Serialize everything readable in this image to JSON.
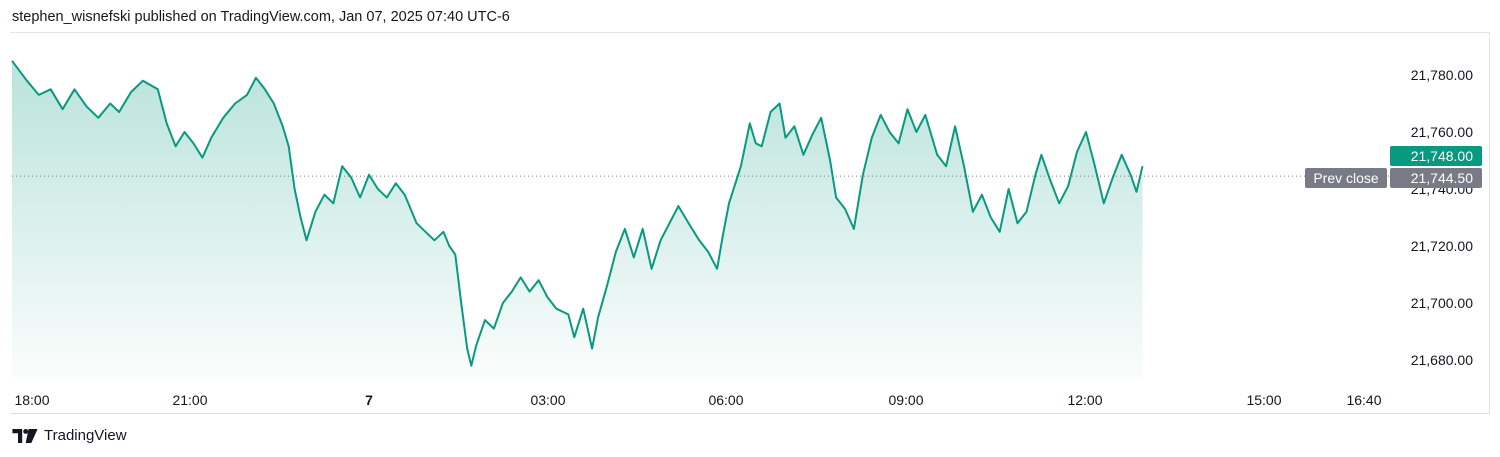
{
  "header": {
    "text": "stephen_wisnefski published on TradingView.com, Jan 07, 2025 07:40 UTC-6"
  },
  "footer": {
    "brand": "TradingView"
  },
  "colors": {
    "line": "#089981",
    "fill": "#089981",
    "price_tag": "#089981",
    "prev_close_tag": "#787b86",
    "grid": "#e0e3eb",
    "text": "#131722"
  },
  "chart_data": {
    "type": "area",
    "x_ticks": [
      "18:00",
      "21:00",
      "7",
      "03:00",
      "06:00",
      "09:00",
      "12:00",
      "15:00",
      "16:40"
    ],
    "y_ticks": [
      "21,780.00",
      "21,760.00",
      "21,740.00",
      "21,720.00",
      "21,700.00",
      "21,680.00"
    ],
    "ylim": [
      21675,
      21790
    ],
    "prev_close": {
      "label": "Prev close",
      "value": 21744.5,
      "value_text": "21,744.50"
    },
    "last_price": {
      "value": 21748.0,
      "value_text": "21,748.00"
    },
    "x_unit": "hours since 17:00 Jan 6",
    "series": [
      {
        "values": [
          [
            0.0,
            21785
          ],
          [
            0.25,
            21778
          ],
          [
            0.45,
            21773
          ],
          [
            0.65,
            21775
          ],
          [
            0.85,
            21768
          ],
          [
            1.05,
            21775
          ],
          [
            1.25,
            21769
          ],
          [
            1.45,
            21765
          ],
          [
            1.65,
            21770
          ],
          [
            1.8,
            21767
          ],
          [
            2.0,
            21774
          ],
          [
            2.2,
            21778
          ],
          [
            2.45,
            21775
          ],
          [
            2.6,
            21763
          ],
          [
            2.75,
            21755
          ],
          [
            2.9,
            21760
          ],
          [
            3.05,
            21756
          ],
          [
            3.2,
            21751
          ],
          [
            3.35,
            21758
          ],
          [
            3.55,
            21765
          ],
          [
            3.75,
            21770
          ],
          [
            3.95,
            21773
          ],
          [
            4.1,
            21779
          ],
          [
            4.25,
            21775
          ],
          [
            4.4,
            21770
          ],
          [
            4.55,
            21762
          ],
          [
            4.65,
            21755
          ],
          [
            4.75,
            21740
          ],
          [
            4.85,
            21730
          ],
          [
            4.95,
            21722
          ],
          [
            5.1,
            21732
          ],
          [
            5.25,
            21738
          ],
          [
            5.4,
            21735
          ],
          [
            5.55,
            21748
          ],
          [
            5.7,
            21744
          ],
          [
            5.85,
            21737
          ],
          [
            6.0,
            21745
          ],
          [
            6.15,
            21740
          ],
          [
            6.3,
            21737
          ],
          [
            6.45,
            21742
          ],
          [
            6.6,
            21738
          ],
          [
            6.8,
            21728
          ],
          [
            6.95,
            21725
          ],
          [
            7.1,
            21722
          ],
          [
            7.25,
            21725
          ],
          [
            7.35,
            21720
          ],
          [
            7.45,
            21717
          ],
          [
            7.55,
            21700
          ],
          [
            7.65,
            21684
          ],
          [
            7.72,
            21678
          ],
          [
            7.8,
            21685
          ],
          [
            7.95,
            21694
          ],
          [
            8.1,
            21691
          ],
          [
            8.25,
            21700
          ],
          [
            8.4,
            21704
          ],
          [
            8.55,
            21709
          ],
          [
            8.7,
            21704
          ],
          [
            8.85,
            21708
          ],
          [
            9.0,
            21702
          ],
          [
            9.15,
            21698
          ],
          [
            9.35,
            21696
          ],
          [
            9.45,
            21688
          ],
          [
            9.6,
            21698
          ],
          [
            9.75,
            21684
          ],
          [
            9.85,
            21695
          ],
          [
            10.0,
            21706
          ],
          [
            10.15,
            21718
          ],
          [
            10.3,
            21726
          ],
          [
            10.45,
            21716
          ],
          [
            10.6,
            21726
          ],
          [
            10.75,
            21712
          ],
          [
            10.9,
            21722
          ],
          [
            11.05,
            21728
          ],
          [
            11.2,
            21734
          ],
          [
            11.4,
            21727
          ],
          [
            11.55,
            21722
          ],
          [
            11.7,
            21718
          ],
          [
            11.85,
            21712
          ],
          [
            11.95,
            21724
          ],
          [
            12.05,
            21735
          ],
          [
            12.25,
            21748
          ],
          [
            12.4,
            21763
          ],
          [
            12.5,
            21756
          ],
          [
            12.6,
            21755
          ],
          [
            12.75,
            21767
          ],
          [
            12.9,
            21770
          ],
          [
            13.0,
            21758
          ],
          [
            13.15,
            21762
          ],
          [
            13.3,
            21752
          ],
          [
            13.45,
            21759
          ],
          [
            13.6,
            21765
          ],
          [
            13.75,
            21750
          ],
          [
            13.85,
            21737
          ],
          [
            14.0,
            21733
          ],
          [
            14.15,
            21726
          ],
          [
            14.3,
            21745
          ],
          [
            14.45,
            21758
          ],
          [
            14.6,
            21766
          ],
          [
            14.75,
            21760
          ],
          [
            14.9,
            21756
          ],
          [
            15.05,
            21768
          ],
          [
            15.2,
            21760
          ],
          [
            15.35,
            21766
          ],
          [
            15.55,
            21752
          ],
          [
            15.7,
            21748
          ],
          [
            15.85,
            21762
          ],
          [
            16.0,
            21748
          ],
          [
            16.15,
            21732
          ],
          [
            16.3,
            21738
          ],
          [
            16.45,
            21730
          ],
          [
            16.6,
            21725
          ],
          [
            16.75,
            21740
          ],
          [
            16.9,
            21728
          ],
          [
            17.05,
            21732
          ],
          [
            17.2,
            21745
          ],
          [
            17.3,
            21752
          ],
          [
            17.45,
            21743
          ],
          [
            17.6,
            21735
          ],
          [
            17.75,
            21741
          ],
          [
            17.9,
            21753
          ],
          [
            18.05,
            21760
          ],
          [
            18.2,
            21748
          ],
          [
            18.35,
            21735
          ],
          [
            18.5,
            21744
          ],
          [
            18.65,
            21752
          ],
          [
            18.8,
            21745
          ],
          [
            18.9,
            21739
          ],
          [
            19.0,
            21748
          ]
        ]
      }
    ]
  }
}
